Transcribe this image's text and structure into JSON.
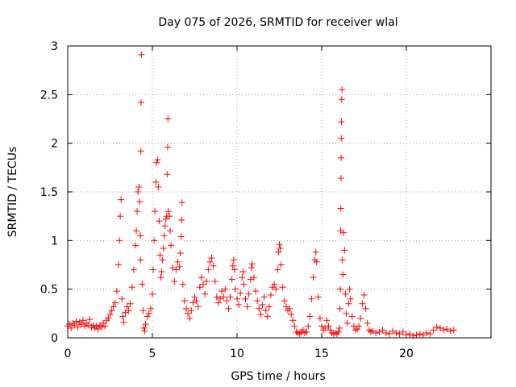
{
  "chart_data": {
    "type": "scatter",
    "title": "Day 075 of 2026, SRMTID for receiver wlal",
    "xlabel": "GPS time / hours",
    "ylabel": "SRMTID / TECUs",
    "xlim": [
      0,
      25
    ],
    "ylim": [
      0,
      3
    ],
    "xticks": [
      0,
      5,
      10,
      15,
      20
    ],
    "xtick_labels": [
      "0",
      "5",
      "10",
      "15",
      "20"
    ],
    "yticks": [
      0,
      0.5,
      1,
      1.5,
      2,
      2.5,
      3
    ],
    "ytick_labels": [
      "0",
      "0.5",
      "1",
      "1.5",
      "2",
      "2.5",
      "3"
    ],
    "grid": true,
    "marker": "+",
    "color": "#ff0000",
    "series": [
      {
        "name": "SRMTID",
        "points": [
          [
            0.0,
            0.12
          ],
          [
            0.1,
            0.14
          ],
          [
            0.2,
            0.1
          ],
          [
            0.3,
            0.15
          ],
          [
            0.4,
            0.13
          ],
          [
            0.5,
            0.17
          ],
          [
            0.6,
            0.11
          ],
          [
            0.7,
            0.16
          ],
          [
            0.8,
            0.14
          ],
          [
            0.9,
            0.18
          ],
          [
            1.0,
            0.12
          ],
          [
            1.1,
            0.15
          ],
          [
            1.2,
            0.13
          ],
          [
            1.3,
            0.19
          ],
          [
            1.4,
            0.11
          ],
          [
            1.5,
            0.13
          ],
          [
            1.6,
            0.1
          ],
          [
            1.7,
            0.12
          ],
          [
            1.8,
            0.09
          ],
          [
            1.9,
            0.13
          ],
          [
            2.0,
            0.11
          ],
          [
            2.1,
            0.15
          ],
          [
            2.2,
            0.12
          ],
          [
            2.3,
            0.18
          ],
          [
            2.4,
            0.2
          ],
          [
            2.5,
            0.24
          ],
          [
            2.6,
            0.28
          ],
          [
            2.7,
            0.32
          ],
          [
            2.8,
            0.36
          ],
          [
            2.9,
            0.48
          ],
          [
            3.0,
            0.75
          ],
          [
            3.05,
            1.0
          ],
          [
            3.1,
            1.25
          ],
          [
            3.15,
            1.42
          ],
          [
            3.2,
            0.4
          ],
          [
            3.25,
            0.22
          ],
          [
            3.3,
            0.16
          ],
          [
            3.4,
            0.26
          ],
          [
            3.5,
            0.32
          ],
          [
            3.6,
            0.28
          ],
          [
            3.7,
            0.35
          ],
          [
            3.8,
            0.52
          ],
          [
            3.9,
            0.7
          ],
          [
            4.0,
            0.95
          ],
          [
            4.05,
            1.1
          ],
          [
            4.1,
            1.3
          ],
          [
            4.15,
            1.5
          ],
          [
            4.2,
            1.55
          ],
          [
            4.25,
            1.4
          ],
          [
            4.3,
            1.05
          ],
          [
            4.3,
            0.8
          ],
          [
            4.32,
            1.92
          ],
          [
            4.33,
            2.42
          ],
          [
            4.35,
            2.91
          ],
          [
            4.4,
            0.55
          ],
          [
            4.45,
            0.28
          ],
          [
            4.5,
            0.1
          ],
          [
            4.55,
            0.07
          ],
          [
            4.6,
            0.14
          ],
          [
            4.7,
            0.22
          ],
          [
            4.8,
            0.25
          ],
          [
            4.9,
            0.3
          ],
          [
            5.0,
            0.45
          ],
          [
            5.05,
            0.7
          ],
          [
            5.1,
            1.0
          ],
          [
            5.15,
            1.3
          ],
          [
            5.2,
            1.6
          ],
          [
            5.25,
            1.8
          ],
          [
            5.3,
            1.83
          ],
          [
            5.35,
            1.55
          ],
          [
            5.4,
            1.2
          ],
          [
            5.45,
            0.85
          ],
          [
            5.5,
            0.62
          ],
          [
            5.55,
            0.68
          ],
          [
            5.6,
            0.8
          ],
          [
            5.65,
            0.92
          ],
          [
            5.7,
            1.05
          ],
          [
            5.75,
            1.15
          ],
          [
            5.8,
            1.22
          ],
          [
            5.85,
            1.25
          ],
          [
            5.87,
            1.68
          ],
          [
            5.9,
            1.96
          ],
          [
            5.92,
            2.25
          ],
          [
            5.95,
            1.3
          ],
          [
            6.0,
            1.25
          ],
          [
            6.05,
            1.1
          ],
          [
            6.1,
            0.95
          ],
          [
            6.2,
            0.72
          ],
          [
            6.3,
            0.58
          ],
          [
            6.4,
            0.7
          ],
          [
            6.5,
            0.78
          ],
          [
            6.6,
            0.73
          ],
          [
            6.65,
            0.87
          ],
          [
            6.7,
            1.04
          ],
          [
            6.72,
            1.21
          ],
          [
            6.75,
            1.39
          ],
          [
            6.8,
            0.55
          ],
          [
            6.9,
            0.38
          ],
          [
            7.0,
            0.3
          ],
          [
            7.1,
            0.25
          ],
          [
            7.2,
            0.2
          ],
          [
            7.3,
            0.28
          ],
          [
            7.4,
            0.36
          ],
          [
            7.5,
            0.42
          ],
          [
            7.6,
            0.38
          ],
          [
            7.7,
            0.32
          ],
          [
            7.8,
            0.52
          ],
          [
            7.9,
            0.62
          ],
          [
            8.0,
            0.55
          ],
          [
            8.1,
            0.45
          ],
          [
            8.2,
            0.58
          ],
          [
            8.3,
            0.7
          ],
          [
            8.4,
            0.78
          ],
          [
            8.5,
            0.82
          ],
          [
            8.6,
            0.74
          ],
          [
            8.7,
            0.58
          ],
          [
            8.8,
            0.42
          ],
          [
            8.9,
            0.36
          ],
          [
            9.0,
            0.4
          ],
          [
            9.1,
            0.48
          ],
          [
            9.2,
            0.42
          ],
          [
            9.3,
            0.5
          ],
          [
            9.4,
            0.38
          ],
          [
            9.5,
            0.3
          ],
          [
            9.6,
            0.42
          ],
          [
            9.7,
            0.6
          ],
          [
            9.75,
            0.74
          ],
          [
            9.8,
            0.8
          ],
          [
            9.85,
            0.7
          ],
          [
            9.9,
            0.5
          ],
          [
            10.0,
            0.4
          ],
          [
            10.1,
            0.34
          ],
          [
            10.2,
            0.46
          ],
          [
            10.3,
            0.62
          ],
          [
            10.35,
            0.68
          ],
          [
            10.4,
            0.55
          ],
          [
            10.5,
            0.4
          ],
          [
            10.6,
            0.32
          ],
          [
            10.7,
            0.45
          ],
          [
            10.8,
            0.6
          ],
          [
            10.85,
            0.72
          ],
          [
            10.9,
            0.76
          ],
          [
            11.0,
            0.62
          ],
          [
            11.1,
            0.48
          ],
          [
            11.2,
            0.38
          ],
          [
            11.3,
            0.3
          ],
          [
            11.4,
            0.24
          ],
          [
            11.5,
            0.34
          ],
          [
            11.6,
            0.42
          ],
          [
            11.7,
            0.28
          ],
          [
            11.8,
            0.22
          ],
          [
            11.9,
            0.32
          ],
          [
            12.0,
            0.44
          ],
          [
            12.1,
            0.52
          ],
          [
            12.2,
            0.55
          ],
          [
            12.3,
            0.5
          ],
          [
            12.4,
            0.7
          ],
          [
            12.45,
            0.88
          ],
          [
            12.5,
            0.96
          ],
          [
            12.55,
            0.92
          ],
          [
            12.6,
            0.75
          ],
          [
            12.7,
            0.52
          ],
          [
            12.8,
            0.38
          ],
          [
            12.9,
            0.32
          ],
          [
            13.0,
            0.28
          ],
          [
            13.1,
            0.3
          ],
          [
            13.2,
            0.24
          ],
          [
            13.3,
            0.18
          ],
          [
            13.4,
            0.12
          ],
          [
            13.5,
            0.06
          ],
          [
            13.6,
            0.05
          ],
          [
            13.7,
            0.04
          ],
          [
            13.8,
            0.06
          ],
          [
            13.9,
            0.08
          ],
          [
            14.0,
            0.05
          ],
          [
            14.1,
            0.06
          ],
          [
            14.2,
            0.12
          ],
          [
            14.3,
            0.22
          ],
          [
            14.4,
            0.4
          ],
          [
            14.5,
            0.62
          ],
          [
            14.6,
            0.8
          ],
          [
            14.65,
            0.88
          ],
          [
            14.7,
            0.78
          ],
          [
            14.8,
            0.42
          ],
          [
            14.9,
            0.2
          ],
          [
            15.0,
            0.12
          ],
          [
            15.1,
            0.08
          ],
          [
            15.2,
            0.1
          ],
          [
            15.3,
            0.18
          ],
          [
            15.4,
            0.12
          ],
          [
            15.5,
            0.08
          ],
          [
            15.6,
            0.05
          ],
          [
            15.7,
            0.04
          ],
          [
            15.8,
            0.05
          ],
          [
            15.9,
            0.04
          ],
          [
            16.0,
            0.06
          ],
          [
            16.05,
            0.1
          ],
          [
            16.08,
            0.3
          ],
          [
            16.1,
            0.5
          ],
          [
            16.12,
            1.1
          ],
          [
            16.13,
            1.33
          ],
          [
            16.14,
            1.64
          ],
          [
            16.15,
            1.85
          ],
          [
            16.16,
            2.05
          ],
          [
            16.17,
            2.22
          ],
          [
            16.18,
            2.45
          ],
          [
            16.2,
            2.55
          ],
          [
            16.22,
            0.8
          ],
          [
            16.25,
            0.65
          ],
          [
            16.3,
            1.08
          ],
          [
            16.35,
            0.9
          ],
          [
            16.4,
            0.45
          ],
          [
            16.45,
            0.25
          ],
          [
            16.5,
            0.15
          ],
          [
            16.6,
            0.35
          ],
          [
            16.65,
            0.5
          ],
          [
            16.7,
            0.4
          ],
          [
            16.8,
            0.22
          ],
          [
            16.9,
            0.12
          ],
          [
            17.0,
            0.08
          ],
          [
            17.1,
            0.09
          ],
          [
            17.2,
            0.12
          ],
          [
            17.3,
            0.2
          ],
          [
            17.4,
            0.35
          ],
          [
            17.5,
            0.44
          ],
          [
            17.6,
            0.3
          ],
          [
            17.7,
            0.15
          ],
          [
            17.8,
            0.08
          ],
          [
            17.9,
            0.06
          ],
          [
            18.0,
            0.07
          ],
          [
            18.2,
            0.05
          ],
          [
            18.4,
            0.06
          ],
          [
            18.6,
            0.08
          ],
          [
            18.8,
            0.05
          ],
          [
            19.0,
            0.04
          ],
          [
            19.2,
            0.07
          ],
          [
            19.4,
            0.05
          ],
          [
            19.6,
            0.04
          ],
          [
            19.8,
            0.06
          ],
          [
            20.0,
            0.03
          ],
          [
            20.2,
            0.04
          ],
          [
            20.4,
            0.02
          ],
          [
            20.6,
            0.03
          ],
          [
            20.8,
            0.04
          ],
          [
            21.0,
            0.03
          ],
          [
            21.2,
            0.05
          ],
          [
            21.4,
            0.04
          ],
          [
            21.6,
            0.08
          ],
          [
            21.8,
            0.11
          ],
          [
            22.0,
            0.1
          ],
          [
            22.2,
            0.08
          ],
          [
            22.4,
            0.09
          ],
          [
            22.6,
            0.07
          ],
          [
            22.8,
            0.08
          ]
        ]
      }
    ]
  }
}
